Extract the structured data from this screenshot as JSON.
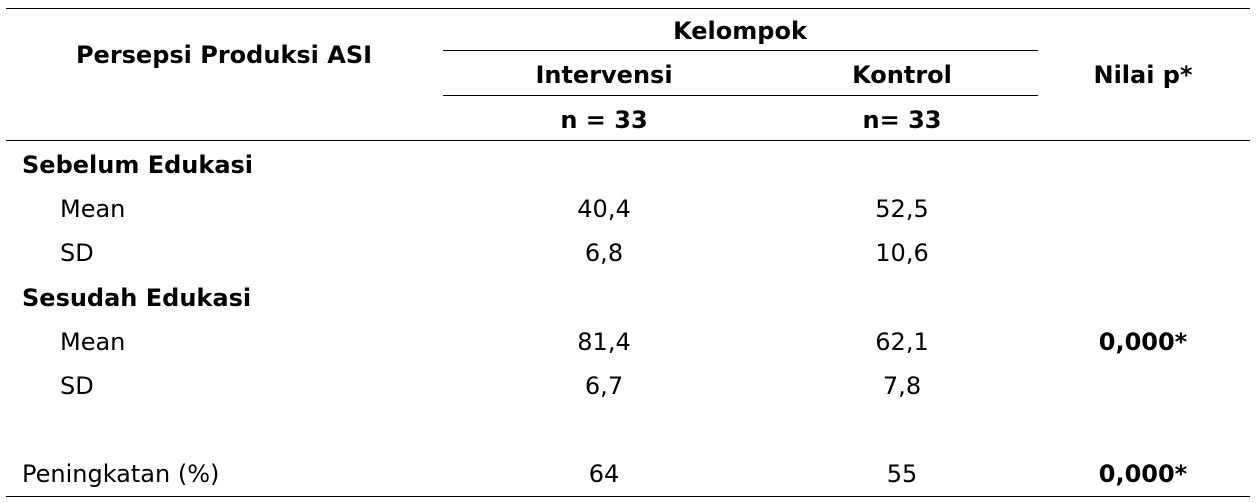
{
  "header": {
    "row_label": "Persepsi Produksi ASI",
    "group": "Kelompok",
    "columns": [
      {
        "name": "Intervensi",
        "n": "n = 33"
      },
      {
        "name": "Kontrol",
        "n": "n= 33"
      }
    ],
    "p_label": "Nilai p*"
  },
  "sections": [
    {
      "title": "Sebelum Edukasi",
      "rows": [
        {
          "label": "Mean",
          "values": [
            "40,4",
            "52,5"
          ]
        },
        {
          "label": "SD",
          "values": [
            "6,8",
            "10,6"
          ]
        }
      ]
    },
    {
      "title": "Sesudah Edukasi",
      "rows": [
        {
          "label": "Mean",
          "values": [
            "81,4",
            "62,1"
          ],
          "p": "0,000*"
        },
        {
          "label": "SD",
          "values": [
            "6,7",
            "7,8"
          ]
        }
      ]
    }
  ],
  "summary": {
    "label": "Peningkatan (%)",
    "values": [
      "64",
      "55"
    ],
    "p": "0,000*"
  }
}
